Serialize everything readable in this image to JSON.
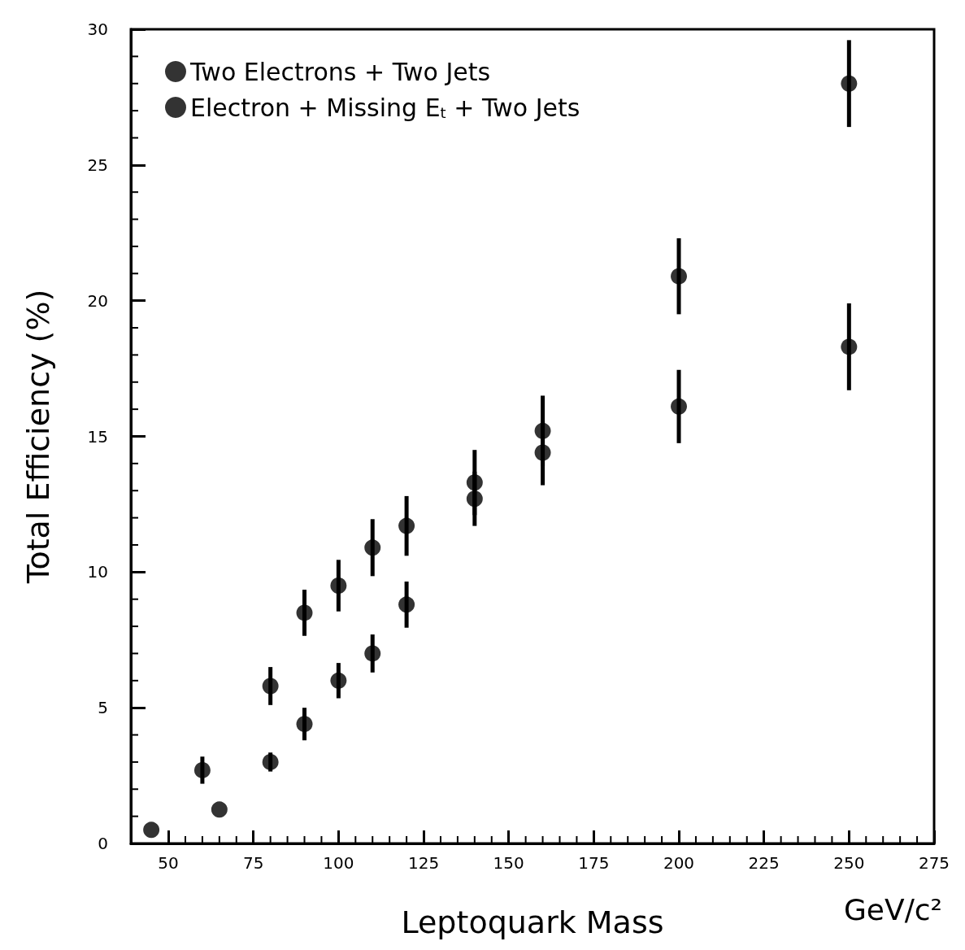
{
  "chart_data": {
    "type": "scatter",
    "xlabel": "Leptoquark Mass",
    "ylabel": "Total Efficiency (%)",
    "annotations": [
      "GeV/c²"
    ],
    "xlim": [
      39,
      275
    ],
    "xticks": [
      50,
      75,
      100,
      125,
      150,
      175,
      200,
      225,
      250,
      275
    ],
    "ylim": [
      0,
      30
    ],
    "yticks": [
      0,
      5,
      10,
      15,
      20,
      25,
      30
    ],
    "grid": false,
    "legend": "top left",
    "marker": "circle",
    "series": [
      {
        "name": "Two Electrons + Two Jets",
        "color": "#000000",
        "x": [
          45,
          60,
          80,
          90,
          100,
          110,
          120,
          140,
          160,
          200,
          250
        ],
        "values": [
          0.5,
          2.7,
          5.8,
          8.5,
          9.5,
          10.9,
          11.7,
          13.3,
          14.4,
          16.1,
          18.3
        ],
        "errors": [
          null,
          0.5,
          0.7,
          0.85,
          0.95,
          1.05,
          1.1,
          1.2,
          1.2,
          1.35,
          1.6
        ]
      },
      {
        "name": "Electron + Missing E$_{t}$ + Two Jets",
        "color": "#000000",
        "x": [
          65,
          80,
          90,
          100,
          110,
          120,
          140,
          160,
          200,
          250
        ],
        "values": [
          1.25,
          3.0,
          4.4,
          6.0,
          7.0,
          8.8,
          12.7,
          15.2,
          20.9,
          28.0
        ],
        "errors": [
          null,
          0.35,
          0.6,
          0.65,
          0.7,
          0.85,
          1.0,
          1.3,
          1.4,
          1.6
        ]
      }
    ]
  }
}
